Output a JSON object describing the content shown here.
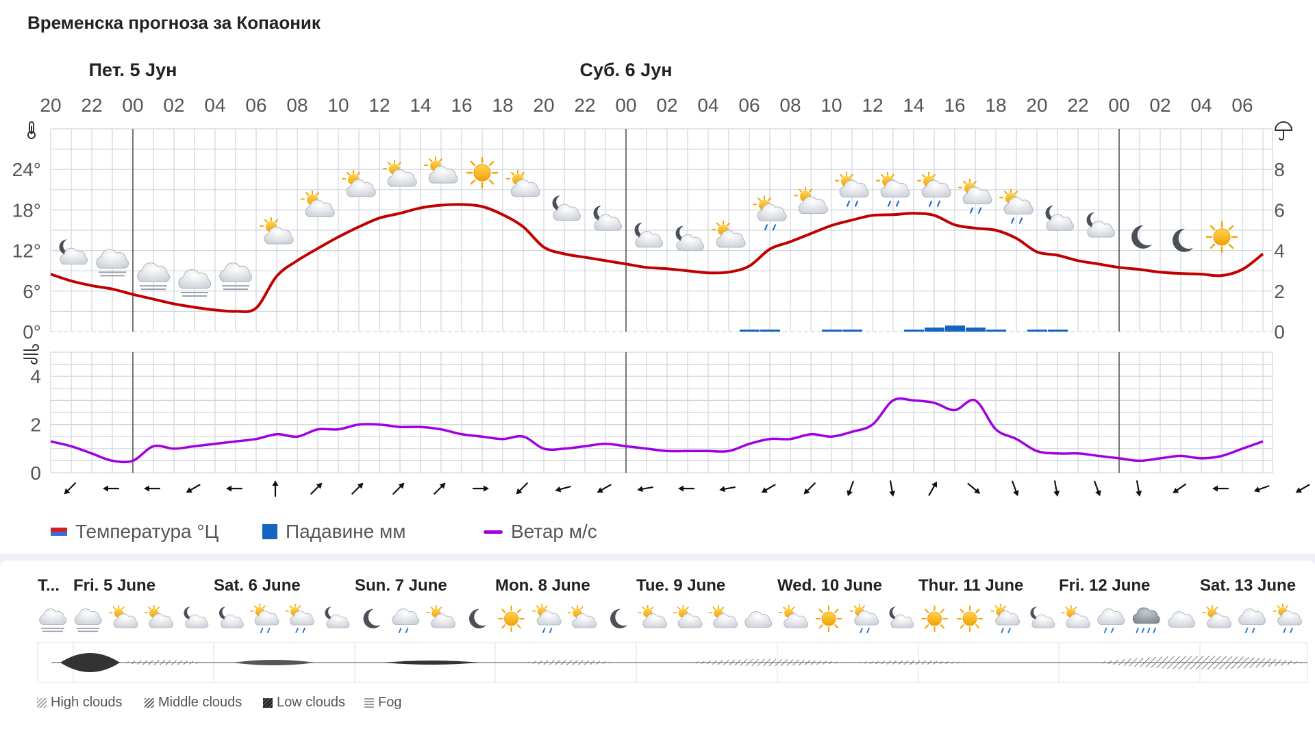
{
  "title": "Временска прогноза за Копаоник",
  "day_headers": [
    {
      "label": "Пет. 5 Јун",
      "hour_index": 4
    },
    {
      "label": "Суб. 6 Јун",
      "hour_index": 28
    }
  ],
  "legend": {
    "temperature": "Температура °Ц",
    "precipitation": "Падавине мм",
    "wind": "Ветар м/с"
  },
  "colors": {
    "temperature": "#c00000",
    "precipitation": "#1565c0",
    "wind": "#a000e0",
    "grid": "#cfd6dd"
  },
  "chart_data": [
    {
      "type": "line",
      "x": [
        "20",
        "21",
        "22",
        "23",
        "00",
        "01",
        "02",
        "03",
        "04",
        "05",
        "06",
        "07",
        "08",
        "09",
        "10",
        "11",
        "12",
        "13",
        "14",
        "15",
        "16",
        "17",
        "18",
        "19",
        "20",
        "21",
        "22",
        "23",
        "00",
        "01",
        "02",
        "03",
        "04",
        "05",
        "06",
        "07",
        "08",
        "09",
        "10",
        "11",
        "12",
        "13",
        "14",
        "15",
        "16",
        "17",
        "18",
        "19",
        "20",
        "21",
        "22",
        "23",
        "00",
        "01",
        "02",
        "03",
        "04",
        "05",
        "06",
        "07"
      ],
      "x_tick_labels": [
        "20",
        "22",
        "00",
        "02",
        "04",
        "06",
        "08",
        "10",
        "12",
        "14",
        "16",
        "18",
        "20",
        "22",
        "00",
        "02",
        "04",
        "06",
        "08",
        "10",
        "12",
        "14",
        "16",
        "18",
        "20",
        "22",
        "00",
        "02",
        "04",
        "06"
      ],
      "series": [
        {
          "name": "Температура °Ц",
          "axis": "left",
          "values": [
            8.5,
            7.5,
            6.8,
            6.3,
            5.5,
            4.8,
            4.1,
            3.6,
            3.2,
            3.0,
            3.5,
            8.2,
            10.5,
            12.3,
            14.0,
            15.5,
            16.8,
            17.5,
            18.3,
            18.7,
            18.8,
            18.5,
            17.3,
            15.5,
            12.5,
            11.5,
            11.0,
            10.5,
            10.0,
            9.5,
            9.3,
            9.0,
            8.7,
            8.8,
            9.7,
            12.2,
            13.3,
            14.5,
            15.7,
            16.5,
            17.2,
            17.3,
            17.5,
            17.2,
            15.8,
            15.3,
            15.0,
            13.8,
            11.8,
            11.3,
            10.5,
            10.0,
            9.5,
            9.2,
            8.8,
            8.6,
            8.5,
            8.3,
            9.2,
            11.5
          ]
        },
        {
          "name": "Падавине мм",
          "axis": "right",
          "type": "bar",
          "values": [
            0,
            0,
            0,
            0,
            0,
            0,
            0,
            0,
            0,
            0,
            0,
            0,
            0,
            0,
            0,
            0,
            0,
            0,
            0,
            0,
            0,
            0,
            0,
            0,
            0,
            0,
            0,
            0,
            0,
            0,
            0,
            0,
            0,
            0,
            0.1,
            0.1,
            0,
            0,
            0.1,
            0.1,
            0,
            0,
            0.1,
            0.2,
            0.3,
            0.2,
            0.1,
            0,
            0.1,
            0.1,
            0,
            0,
            0,
            0,
            0,
            0,
            0,
            0,
            0,
            0
          ]
        }
      ],
      "yleft_ticks": [
        "0°",
        "6°",
        "12°",
        "18°",
        "24°"
      ],
      "yleft_range": [
        0,
        30
      ],
      "yright_ticks": [
        "0",
        "2",
        "4",
        "6",
        "8"
      ],
      "yright_range": [
        0,
        10
      ],
      "weather_icons": [
        {
          "i": 1,
          "icon": "partly-cloudy-night",
          "y": 11.5
        },
        {
          "i": 3,
          "icon": "cloudy-fog",
          "y": 10.5
        },
        {
          "i": 5,
          "icon": "cloudy-fog",
          "y": 8.5
        },
        {
          "i": 7,
          "icon": "cloudy-fog",
          "y": 7.5
        },
        {
          "i": 9,
          "icon": "cloudy-fog",
          "y": 8.5
        },
        {
          "i": 11,
          "icon": "sun-cloud",
          "y": 14.5
        },
        {
          "i": 13,
          "icon": "sun-cloud",
          "y": 18.5
        },
        {
          "i": 15,
          "icon": "sun-cloud",
          "y": 21.5
        },
        {
          "i": 17,
          "icon": "sun-cloud",
          "y": 23.0
        },
        {
          "i": 19,
          "icon": "sun-cloud",
          "y": 23.5
        },
        {
          "i": 21,
          "icon": "sun",
          "y": 23.5
        },
        {
          "i": 23,
          "icon": "sun-cloud",
          "y": 21.5
        },
        {
          "i": 25,
          "icon": "partly-cloudy-night",
          "y": 18.0
        },
        {
          "i": 27,
          "icon": "partly-cloudy-night",
          "y": 16.5
        },
        {
          "i": 29,
          "icon": "partly-cloudy-night",
          "y": 14.0
        },
        {
          "i": 31,
          "icon": "partly-cloudy-night",
          "y": 13.5
        },
        {
          "i": 33,
          "icon": "sun-cloud",
          "y": 14.0
        },
        {
          "i": 35,
          "icon": "sun-cloud-rain",
          "y": 17.5
        },
        {
          "i": 37,
          "icon": "sun-cloud",
          "y": 19.0
        },
        {
          "i": 39,
          "icon": "sun-cloud-rain",
          "y": 21.0
        },
        {
          "i": 41,
          "icon": "sun-cloud-rain",
          "y": 21.0
        },
        {
          "i": 43,
          "icon": "sun-cloud-rain",
          "y": 21.0
        },
        {
          "i": 45,
          "icon": "sun-cloud-rain",
          "y": 20.0
        },
        {
          "i": 47,
          "icon": "sun-cloud-rain",
          "y": 18.5
        },
        {
          "i": 49,
          "icon": "partly-cloudy-night",
          "y": 16.5
        },
        {
          "i": 51,
          "icon": "partly-cloudy-night",
          "y": 15.5
        },
        {
          "i": 53,
          "icon": "moon",
          "y": 14.0
        },
        {
          "i": 55,
          "icon": "moon",
          "y": 13.5
        },
        {
          "i": 57,
          "icon": "sun",
          "y": 14.0
        }
      ]
    },
    {
      "type": "line",
      "series": [
        {
          "name": "Ветар м/с",
          "values": [
            1.3,
            1.1,
            0.8,
            0.5,
            0.5,
            1.1,
            1.0,
            1.1,
            1.2,
            1.3,
            1.4,
            1.6,
            1.5,
            1.8,
            1.8,
            2.0,
            2.0,
            1.9,
            1.9,
            1.8,
            1.6,
            1.5,
            1.4,
            1.5,
            1.0,
            1.0,
            1.1,
            1.2,
            1.1,
            1.0,
            0.9,
            0.9,
            0.9,
            0.9,
            1.2,
            1.4,
            1.4,
            1.6,
            1.5,
            1.7,
            2.0,
            3.0,
            3.0,
            2.9,
            2.6,
            3.0,
            1.8,
            1.4,
            0.9,
            0.8,
            0.8,
            0.7,
            0.6,
            0.5,
            0.6,
            0.7,
            0.6,
            0.7,
            1.0,
            1.3
          ]
        }
      ],
      "y_ticks": [
        "0",
        "2",
        "4"
      ],
      "y_range": [
        0,
        5
      ],
      "wind_direction_deg": [
        225,
        270,
        270,
        240,
        270,
        0,
        45,
        45,
        45,
        45,
        90,
        225,
        255,
        240,
        260,
        270,
        260,
        240,
        225,
        200,
        170,
        30,
        130,
        160,
        170,
        160,
        170,
        235,
        270,
        250,
        240,
        260,
        170
      ]
    }
  ],
  "overview": {
    "days": [
      "T...",
      "Fri. 5 June",
      "Sat. 6 June",
      "Sun. 7 June",
      "Mon. 8 June",
      "Tue. 9 June",
      "Wed. 10 June",
      "Thur. 11 June",
      "Fri. 12 June",
      "Sat. 13 June"
    ],
    "icons": [
      "cloudy-fog",
      "cloudy-fog",
      "sun-cloud",
      "sun-cloud",
      "partly-cloudy-night",
      "partly-cloudy-night",
      "sun-cloud-rain",
      "sun-cloud-rain",
      "partly-cloudy-night",
      "moon",
      "cloud-rain",
      "sun-cloud",
      "moon",
      "sun",
      "sun-cloud-rain",
      "sun-cloud",
      "moon",
      "sun-cloud",
      "sun-cloud",
      "sun-cloud",
      "cloud",
      "sun-cloud",
      "sun",
      "sun-cloud-rain",
      "partly-cloudy-night",
      "sun",
      "sun",
      "sun-cloud-rain",
      "partly-cloudy-night",
      "sun-cloud",
      "cloud-rain",
      "cloud-heavy-rain",
      "cloud",
      "sun-cloud",
      "cloud-rain",
      "sun-cloud-rain"
    ],
    "cloud_legend": [
      "High clouds",
      "Middle clouds",
      "Low clouds",
      "Fog"
    ]
  }
}
